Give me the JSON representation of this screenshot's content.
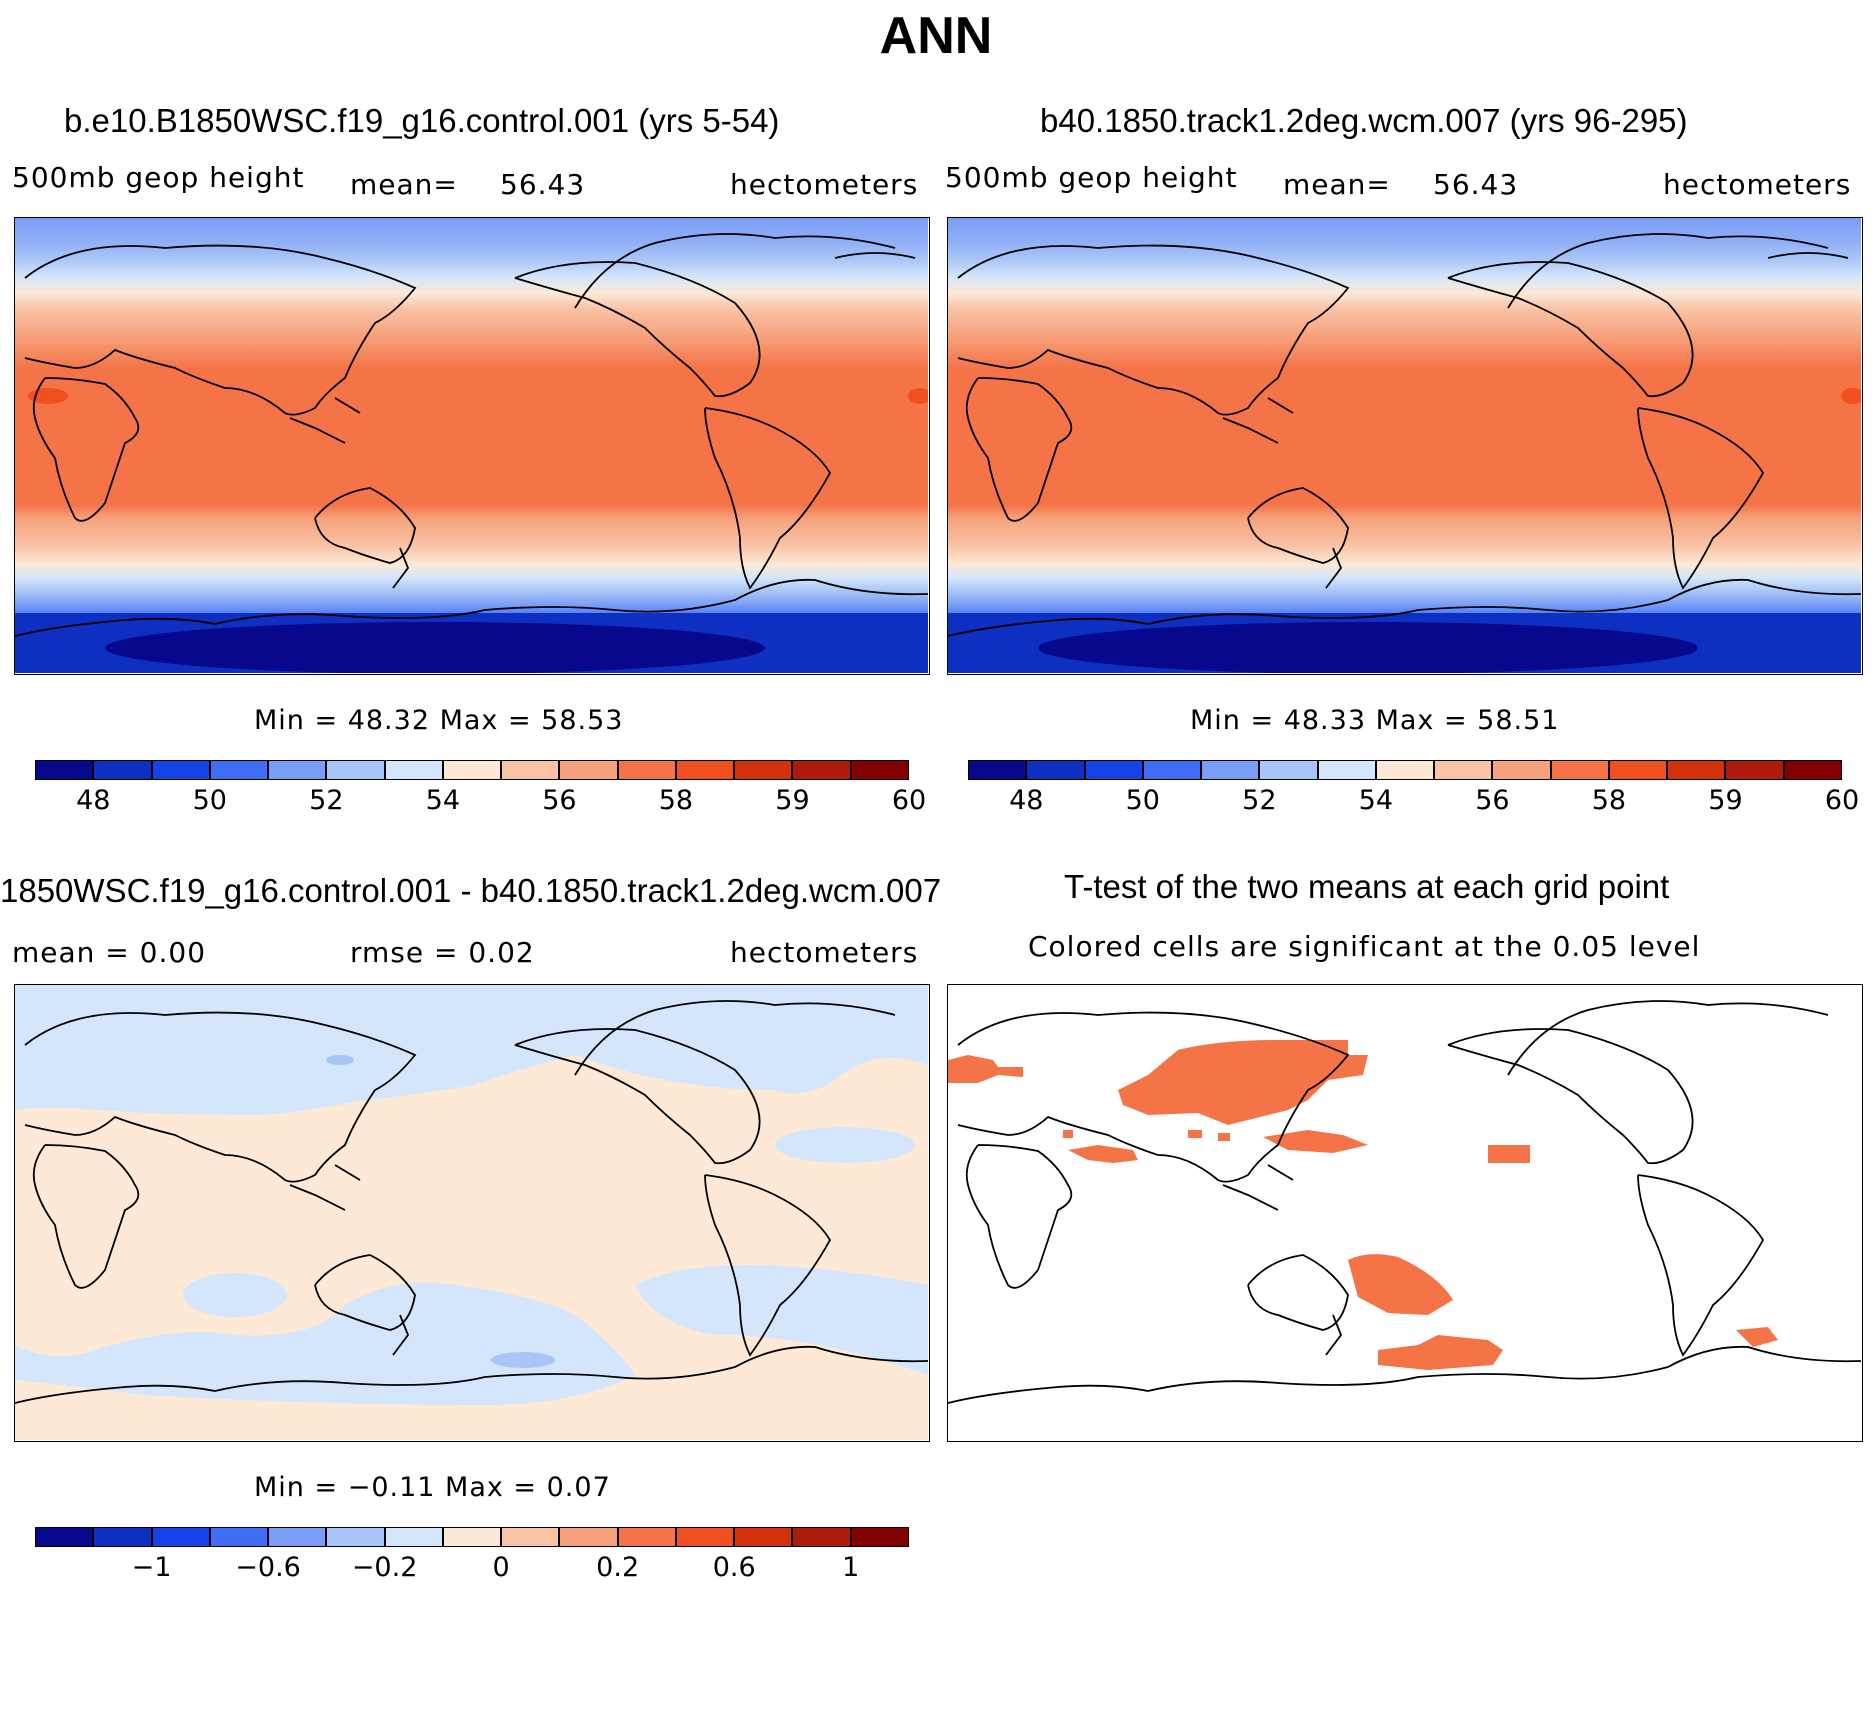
{
  "title": "ANN",
  "panels": {
    "top_left": {
      "title": "b.e10.B1850WSC.f19_g16.control.001 (yrs 5-54)",
      "variable": "500mb  geop  height",
      "mean_label": "mean=",
      "mean_value": "56.43",
      "units": "hectometers",
      "min_max": "Min  =   48.32  Max  =   58.53"
    },
    "top_right": {
      "title": "b40.1850.track1.2deg.wcm.007 (yrs 96-295)",
      "variable": "500mb  geop  height",
      "mean_label": "mean=",
      "mean_value": "56.43",
      "units": "hectometers",
      "min_max": "Min  =   48.33  Max  =   58.51"
    },
    "bottom_left": {
      "title": "1850WSC.f19_g16.control.001 - b40.1850.track1.2deg.wcm.007",
      "mean_text": "mean  =      0.00",
      "rmse_text": "rmse  =      0.02",
      "units": "hectometers",
      "min_max": "Min  =   −0.11  Max  =      0.07"
    },
    "bottom_right": {
      "title": "T-test of the two means at each grid point",
      "subtitle": "Colored cells are significant at the 0.05 level"
    }
  },
  "colorbars": {
    "colors": [
      "#08088c",
      "#0d2fc2",
      "#1543e6",
      "#3f6ef5",
      "#7a9ef6",
      "#a9c5f7",
      "#d4e6fb",
      "#fde9d6",
      "#f9c3a6",
      "#f6a17c",
      "#f47447",
      "#f0501f",
      "#d4320c",
      "#ac1b0b",
      "#820202"
    ],
    "absolute_ticks": [
      "48",
      "50",
      "52",
      "54",
      "56",
      "58",
      "59",
      "60"
    ],
    "difference_ticks": [
      "−1",
      "−0.6",
      "−0.2",
      "0",
      "0.2",
      "0.6",
      "1"
    ]
  }
}
